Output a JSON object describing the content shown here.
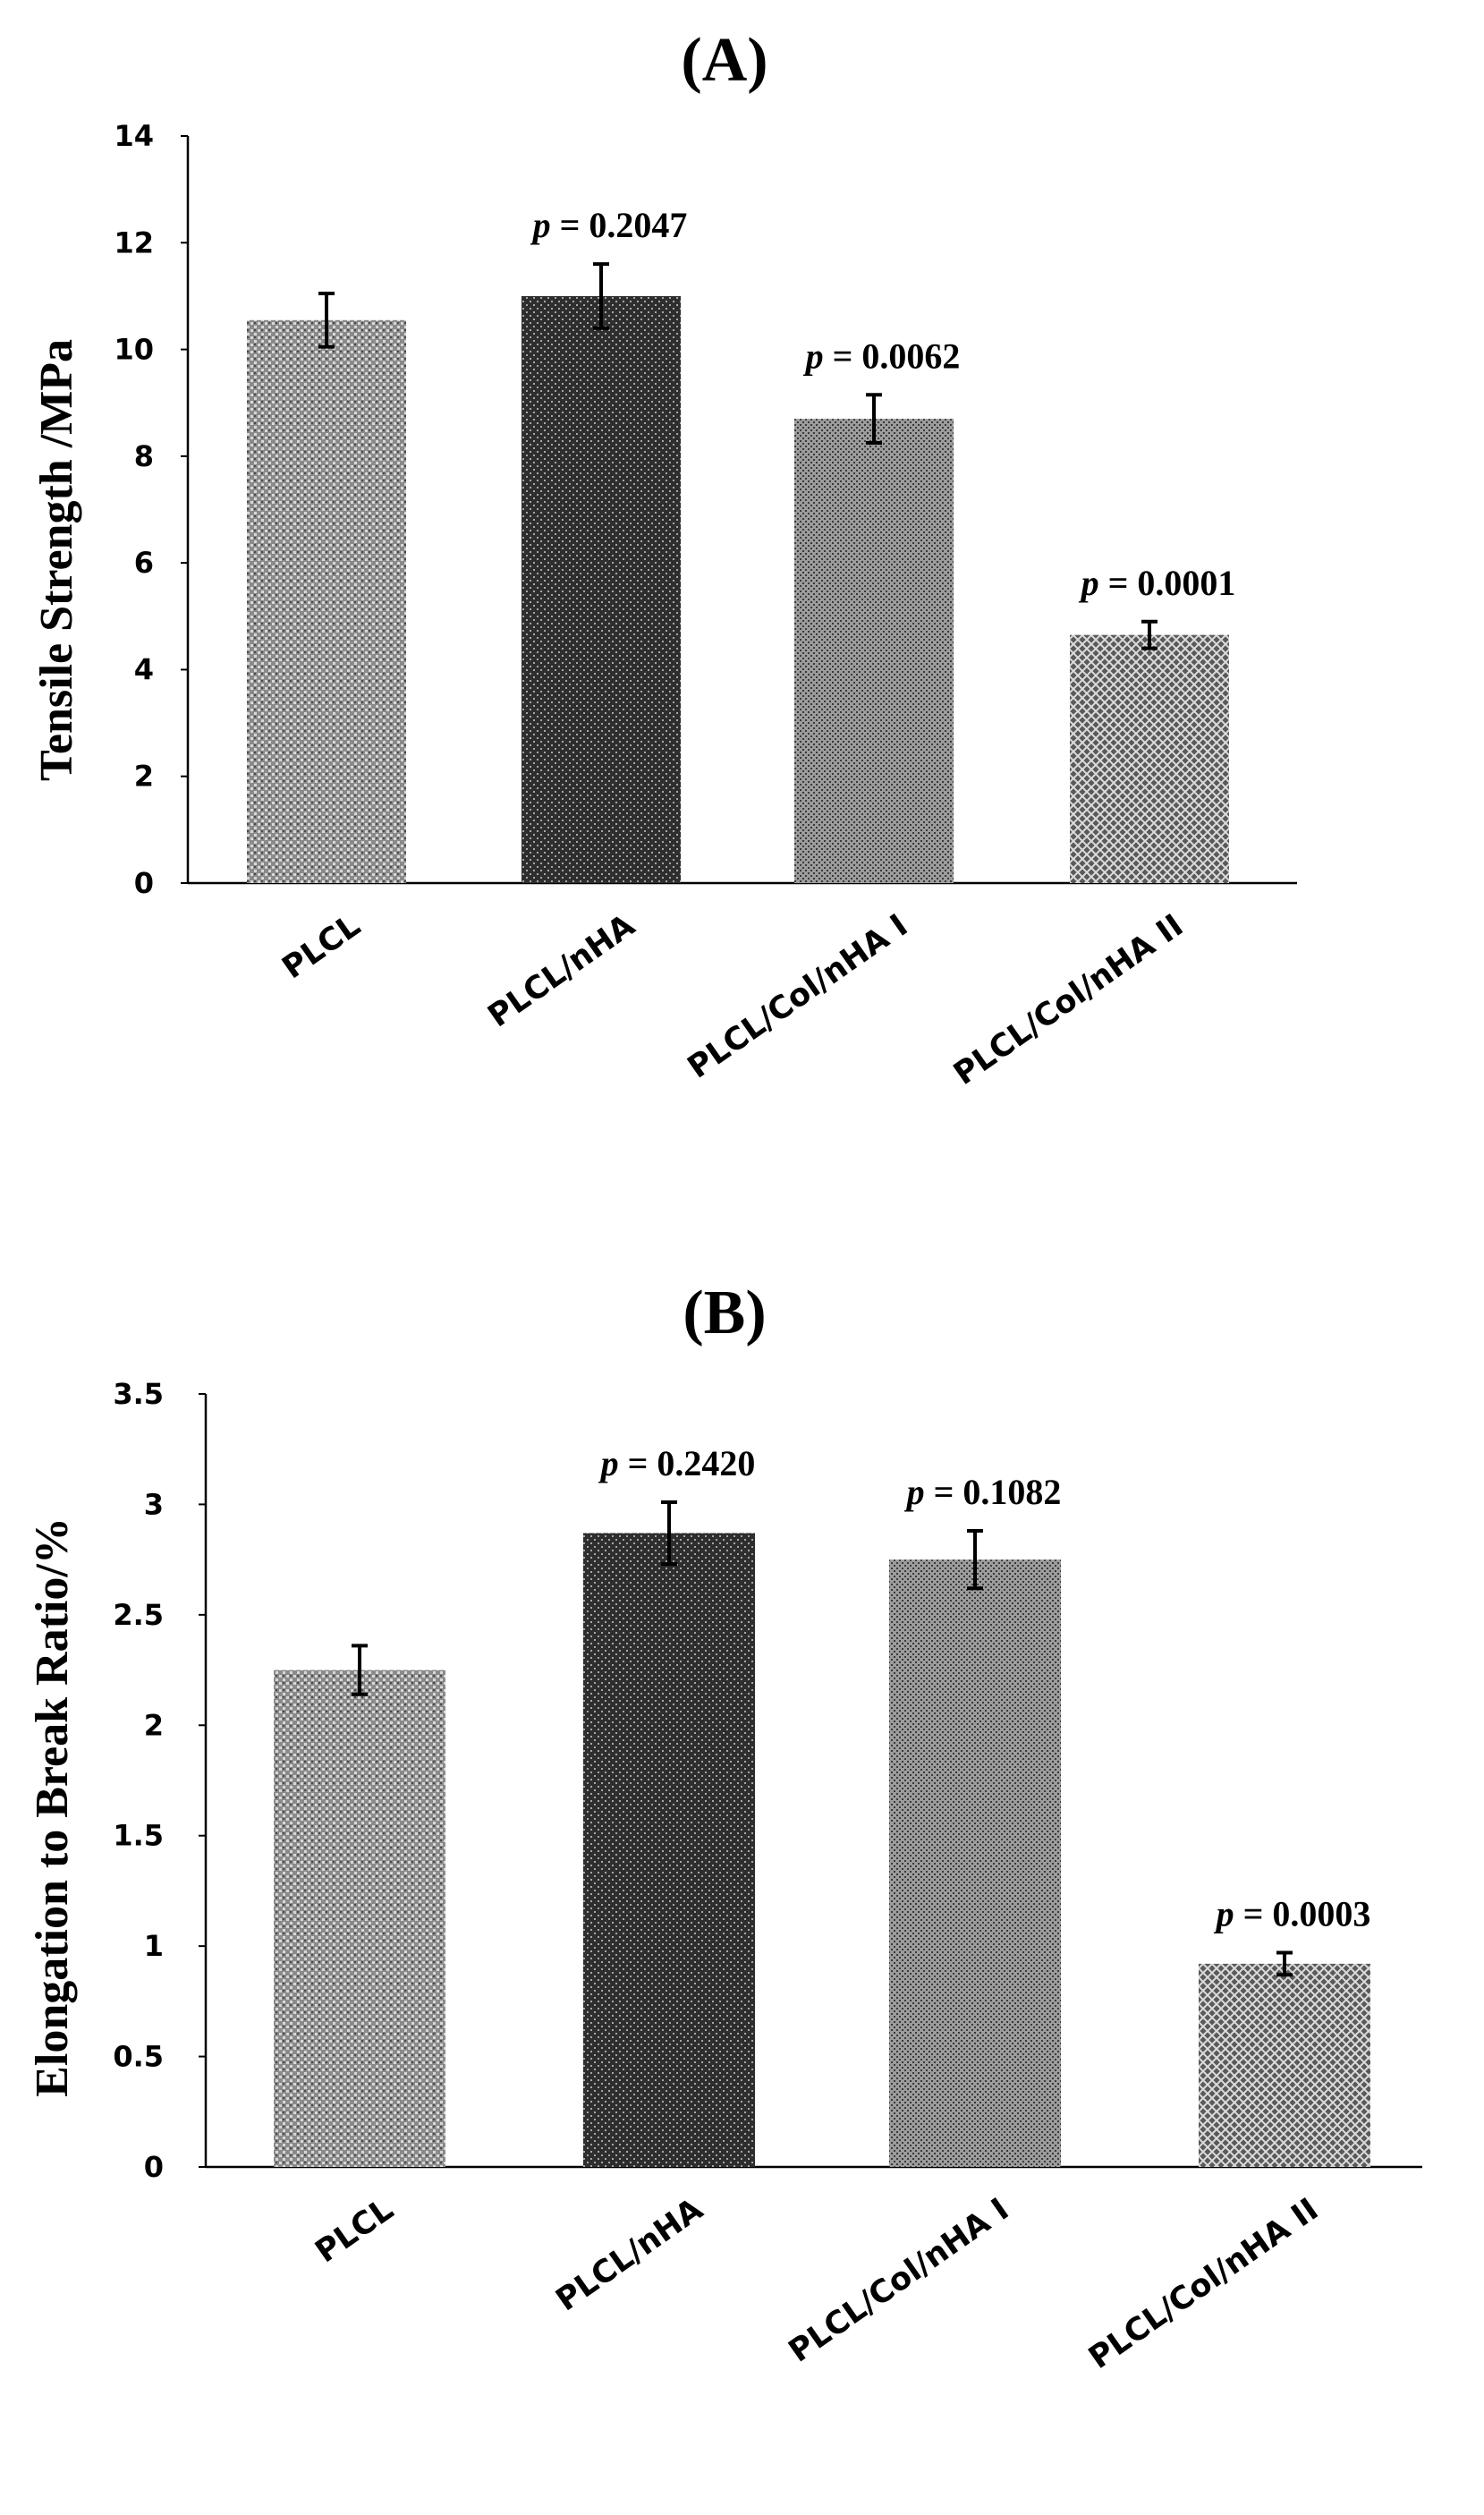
{
  "chart_data": [
    {
      "type": "bar",
      "panel_label": "(A)",
      "ylabel": "Tensile Strength /MPa",
      "xlabel": "",
      "ylim": [
        0,
        14
      ],
      "yticks": [
        0,
        2,
        4,
        6,
        8,
        10,
        12,
        14
      ],
      "categories": [
        "PLCL",
        "PLCL/nHA",
        "PLCL/Col/nHA I",
        "PLCL/Col/nHA II"
      ],
      "values": [
        10.55,
        11.0,
        8.7,
        4.65
      ],
      "errors": [
        0.5,
        0.6,
        0.45,
        0.25
      ],
      "p_values": [
        "",
        "p = 0.2047",
        "p = 0.0062",
        "p = 0.0001"
      ],
      "grid": false,
      "legend": "none"
    },
    {
      "type": "bar",
      "panel_label": "(B)",
      "ylabel": "Elongation to Break Ratio/%",
      "xlabel": "",
      "ylim": [
        0,
        3.5
      ],
      "yticks": [
        0,
        0.5,
        1,
        1.5,
        2,
        2.5,
        3,
        3.5
      ],
      "categories": [
        "PLCL",
        "PLCL/nHA",
        "PLCL/Col/nHA I",
        "PLCL/Col/nHA II"
      ],
      "values": [
        2.25,
        2.87,
        2.75,
        0.92
      ],
      "errors": [
        0.11,
        0.14,
        0.13,
        0.05
      ],
      "p_values": [
        "",
        "p = 0.2420",
        "p = 0.1082",
        "p = 0.0003"
      ],
      "grid": false,
      "legend": "none"
    }
  ],
  "colors": {
    "bar_fills": [
      "#8a8a8a",
      "#2e2e2e",
      "#7f7f7f",
      "#555555"
    ],
    "pattern_dots": [
      "#ffffff",
      "#bdbdbd",
      "#1a1a1a",
      "#d9d9d9"
    ],
    "axis": "#000000"
  }
}
